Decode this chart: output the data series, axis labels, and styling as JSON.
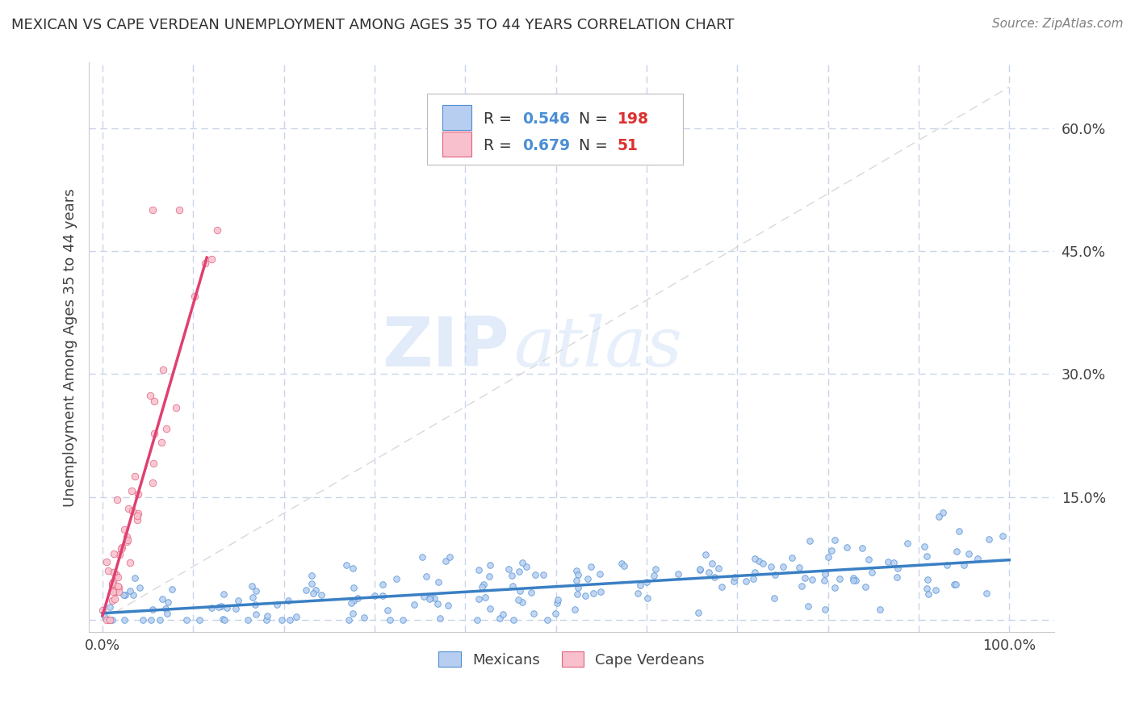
{
  "title": "MEXICAN VS CAPE VERDEAN UNEMPLOYMENT AMONG AGES 35 TO 44 YEARS CORRELATION CHART",
  "source": "Source: ZipAtlas.com",
  "ylabel": "Unemployment Among Ages 35 to 44 years",
  "watermark_zip": "ZIP",
  "watermark_atlas": "atlas",
  "legend": {
    "mexican": {
      "R": 0.546,
      "N": 198
    },
    "cape_verdean": {
      "R": 0.679,
      "N": 51
    }
  },
  "x_ticks": [
    0.0,
    0.1,
    0.2,
    0.3,
    0.4,
    0.5,
    0.6,
    0.7,
    0.8,
    0.9,
    1.0
  ],
  "x_tick_labels": [
    "0.0%",
    "",
    "",
    "",
    "",
    "",
    "",
    "",
    "",
    "",
    "100.0%"
  ],
  "y_ticks": [
    0.0,
    0.15,
    0.3,
    0.45,
    0.6
  ],
  "y_tick_labels": [
    "",
    "15.0%",
    "30.0%",
    "45.0%",
    "60.0%"
  ],
  "xlim": [
    -0.015,
    1.05
  ],
  "ylim": [
    -0.015,
    0.68
  ],
  "bg_color": "#ffffff",
  "grid_color": "#c8d4e8",
  "axis_color": "#cccccc",
  "mexican_scatter_color": "#b8cef0",
  "mexican_scatter_edge": "#4a8fd4",
  "cape_scatter_color": "#f8c0cc",
  "cape_scatter_edge": "#e06080",
  "mexican_line_color": "#3a7fc4",
  "cape_line_color": "#e04070",
  "ref_line_color": "#c8c8c8",
  "legend_r_color": "#4a8fd4",
  "legend_n_color": "#dd3030",
  "title_color": "#303030",
  "source_color": "#808080",
  "ylabel_color": "#404040",
  "tick_label_color": "#404040"
}
